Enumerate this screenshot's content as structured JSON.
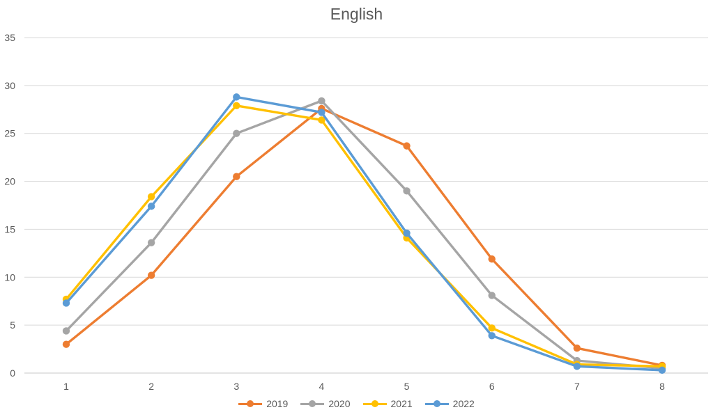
{
  "chart_data": {
    "type": "line",
    "title": "English",
    "x": [
      1,
      2,
      3,
      4,
      5,
      6,
      7,
      8
    ],
    "series": [
      {
        "name": "2019",
        "color": "#ED7D31",
        "values": [
          3,
          10.2,
          20.5,
          27.6,
          23.7,
          11.9,
          2.6,
          0.8
        ]
      },
      {
        "name": "2020",
        "color": "#A5A5A5",
        "values": [
          4.4,
          13.6,
          25,
          28.4,
          19,
          8.1,
          1.3,
          0.5
        ]
      },
      {
        "name": "2021",
        "color": "#FFC000",
        "values": [
          7.7,
          18.4,
          27.9,
          26.4,
          14.1,
          4.7,
          0.9,
          0.7
        ]
      },
      {
        "name": "2022",
        "color": "#5B9BD5",
        "values": [
          7.3,
          17.4,
          28.8,
          27.2,
          14.6,
          3.9,
          0.7,
          0.3
        ]
      }
    ],
    "xlabel": "",
    "ylabel": "",
    "ylim": [
      0,
      35
    ],
    "yticks": [
      0,
      5,
      10,
      15,
      20,
      25,
      30,
      35
    ],
    "grid": true,
    "legend_position": "bottom",
    "marker": "circle"
  },
  "style": {
    "text_color": "#595959",
    "gridline_color": "#D9D9D9",
    "axis_line_color": "#C9C9C9",
    "background": "#FFFFFF"
  }
}
